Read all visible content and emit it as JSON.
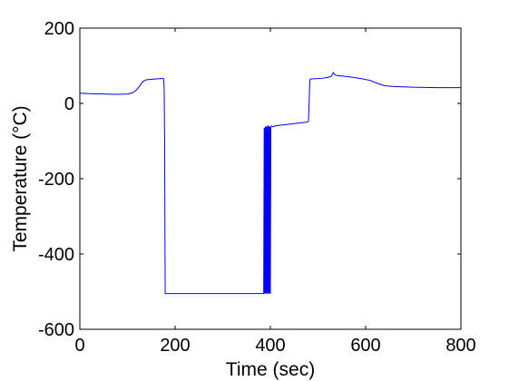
{
  "chart_data": {
    "type": "line",
    "title": "",
    "xlabel": "Time (sec)",
    "ylabel": "Temperature (°C)",
    "xlim": [
      0,
      800
    ],
    "ylim": [
      -600,
      200
    ],
    "xticks": [
      0,
      200,
      400,
      600,
      800
    ],
    "xtick_labels": [
      "0",
      "200",
      "400",
      "600",
      "800"
    ],
    "yticks": [
      -600,
      -400,
      -200,
      0,
      200
    ],
    "ytick_labels": [
      "-600",
      "-400",
      "-200",
      "0",
      "200"
    ],
    "grid": false,
    "legend": "none",
    "series": [
      {
        "color": "#0000ff",
        "x": [
          0,
          20,
          50,
          80,
          100,
          110,
          118,
          125,
          132,
          140,
          150,
          160,
          170,
          175,
          176,
          177,
          178,
          178.5,
          179,
          179.2,
          180,
          190,
          250,
          300,
          350,
          380,
          386,
          387,
          388,
          389,
          390,
          391,
          392,
          393,
          394,
          395,
          396,
          397,
          398,
          399,
          400,
          401,
          402,
          405,
          410,
          420,
          440,
          460,
          475,
          480,
          482,
          483,
          485,
          500,
          510,
          520,
          528,
          532,
          536,
          540,
          550,
          570,
          590,
          610,
          625,
          640,
          660,
          700,
          750,
          800
        ],
        "y": [
          27,
          26,
          25,
          24,
          25,
          28,
          35,
          45,
          58,
          63,
          64,
          65,
          66,
          66,
          65,
          40,
          -100,
          -300,
          -450,
          -505,
          -505,
          -505,
          -505,
          -505,
          -505,
          -505,
          -505,
          -65,
          -505,
          -62,
          -505,
          -60,
          -505,
          -62,
          -505,
          -58,
          -505,
          -60,
          -505,
          -62,
          -505,
          -62,
          -60,
          -62,
          -60,
          -58,
          -55,
          -52,
          -50,
          -48,
          30,
          63,
          65,
          66,
          67,
          69,
          72,
          82,
          76,
          74,
          73,
          70,
          66,
          61,
          53,
          47,
          45,
          43,
          42,
          42
        ]
      }
    ]
  }
}
